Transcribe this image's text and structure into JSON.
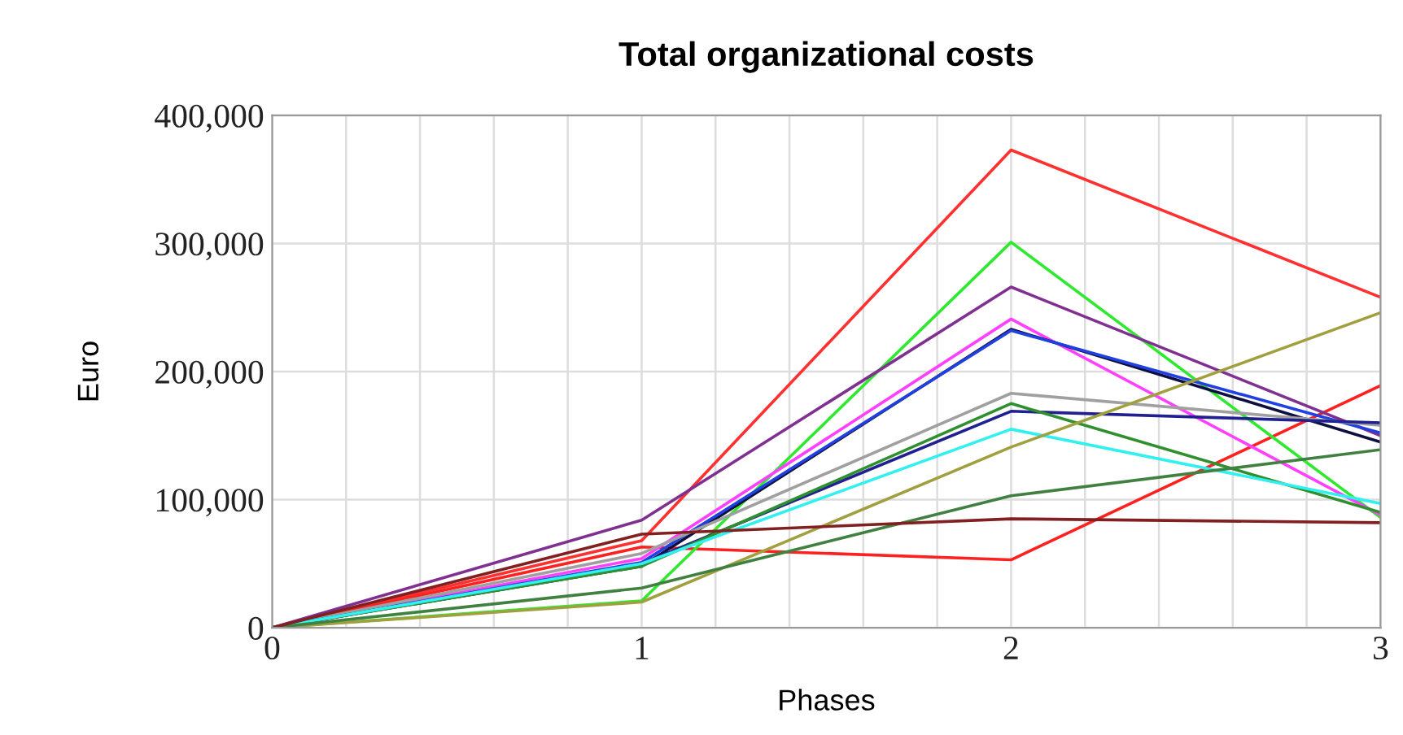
{
  "chart_data": {
    "type": "line",
    "title": "Total organizational costs",
    "xlabel": "Phases",
    "ylabel": "Euro",
    "x": [
      0,
      1,
      2,
      3
    ],
    "xlim": [
      0,
      3
    ],
    "xticks": [
      0,
      {
        "value": 0.2,
        "label": null
      },
      {
        "value": 0.4,
        "label": null
      },
      {
        "value": 0.6,
        "label": null
      },
      {
        "value": 0.8,
        "label": null
      },
      1,
      {
        "value": 1.2,
        "label": null
      },
      {
        "value": 1.4,
        "label": null
      },
      {
        "value": 1.6,
        "label": null
      },
      {
        "value": 1.8,
        "label": null
      },
      2,
      {
        "value": 2.2,
        "label": null
      },
      {
        "value": 2.4,
        "label": null
      },
      {
        "value": 2.6,
        "label": null
      },
      {
        "value": 2.8,
        "label": null
      },
      3
    ],
    "ylim": [
      0,
      400000
    ],
    "yticks": [
      0,
      {
        "value": 100000,
        "label": "100,000"
      },
      {
        "value": 200000,
        "label": "200,000"
      },
      {
        "value": 300000,
        "label": "300,000"
      },
      {
        "value": 400000,
        "label": "400,000"
      }
    ],
    "grid": true,
    "legend": false,
    "marker": "none",
    "line_style": "solid",
    "series": [
      {
        "color": "#ff3030",
        "values": [
          0,
          68000,
          373000,
          258000
        ]
      },
      {
        "color": "#ff2020",
        "values": [
          0,
          63000,
          53000,
          189000
        ]
      },
      {
        "color": "#30e830",
        "values": [
          0,
          21000,
          301000,
          86000
        ]
      },
      {
        "color": "#803090",
        "values": [
          0,
          84000,
          266000,
          150000
        ]
      },
      {
        "color": "#ff40ff",
        "values": [
          0,
          54000,
          241000,
          88000
        ]
      },
      {
        "color": "#101040",
        "values": [
          0,
          48000,
          233000,
          145000
        ]
      },
      {
        "color": "#2040e0",
        "values": [
          0,
          51000,
          232000,
          152000
        ]
      },
      {
        "color": "#a0a0a0",
        "values": [
          0,
          58000,
          183000,
          158000
        ]
      },
      {
        "color": "#202090",
        "values": [
          0,
          50000,
          169000,
          160000
        ]
      },
      {
        "color": "#309030",
        "values": [
          0,
          48000,
          175000,
          90000
        ]
      },
      {
        "color": "#30f0f0",
        "values": [
          0,
          50000,
          155000,
          97000
        ]
      },
      {
        "color": "#a0a040",
        "values": [
          0,
          20000,
          141000,
          246000
        ]
      },
      {
        "color": "#408040",
        "values": [
          0,
          31000,
          103000,
          139000
        ]
      },
      {
        "color": "#802020",
        "values": [
          0,
          73000,
          85000,
          82000
        ]
      }
    ]
  }
}
